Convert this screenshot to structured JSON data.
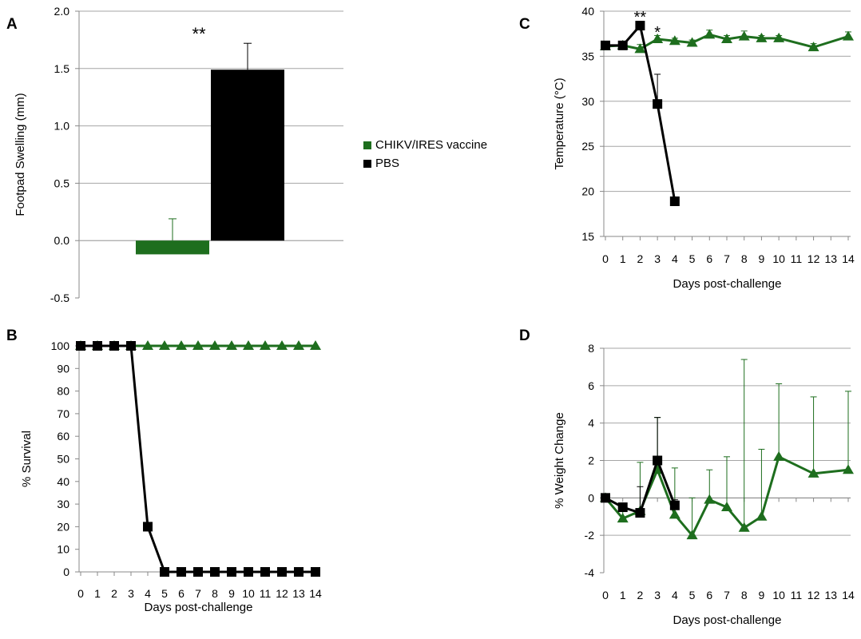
{
  "colors": {
    "vaccine": "#1e6e1e",
    "pbs": "#000000",
    "grid": "#a6a6a6"
  },
  "legend": [
    {
      "label": "CHIKV/IRES vaccine",
      "color": "#1e6e1e"
    },
    {
      "label": "PBS",
      "color": "#000000"
    }
  ],
  "chart_data": [
    {
      "panel": "A",
      "type": "bar",
      "ylabel": "Footpad Swelling (mm)",
      "ylim": [
        -0.5,
        2.0
      ],
      "yticks": [
        "-0.5",
        "0.0",
        "0.5",
        "1.0",
        "1.5",
        "2.0"
      ],
      "grid": true,
      "series": [
        {
          "name": "CHIKV/IRES vaccine",
          "value": -0.12,
          "error": 0.19
        },
        {
          "name": "PBS",
          "value": 1.49,
          "error": 0.23
        }
      ],
      "annotations": [
        "**"
      ]
    },
    {
      "panel": "B",
      "type": "line",
      "xlabel": "Days post-challenge",
      "ylabel": "% Survival",
      "ylim": [
        0,
        100
      ],
      "yticks": [
        "0",
        "10",
        "20",
        "30",
        "40",
        "50",
        "60",
        "70",
        "80",
        "90",
        "100"
      ],
      "x": [
        0,
        1,
        2,
        3,
        4,
        5,
        6,
        7,
        8,
        9,
        10,
        11,
        12,
        13,
        14
      ],
      "grid": false,
      "series": [
        {
          "name": "CHIKV/IRES vaccine",
          "marker": "triangle",
          "values": [
            100,
            100,
            100,
            100,
            100,
            100,
            100,
            100,
            100,
            100,
            100,
            100,
            100,
            100,
            100
          ]
        },
        {
          "name": "PBS",
          "marker": "square",
          "values": [
            100,
            100,
            100,
            100,
            20,
            0,
            0,
            0,
            0,
            0,
            0,
            0,
            0,
            0,
            0
          ]
        }
      ]
    },
    {
      "panel": "C",
      "type": "line",
      "xlabel": "Days post-challenge",
      "ylabel": "Temperature (°C)",
      "ylim": [
        15,
        40
      ],
      "yticks": [
        "15",
        "20",
        "25",
        "30",
        "35",
        "40"
      ],
      "grid": true,
      "series": [
        {
          "name": "CHIKV/IRES vaccine",
          "marker": "triangle",
          "x": [
            0,
            1,
            2,
            3,
            4,
            5,
            6,
            7,
            8,
            9,
            10,
            12,
            14
          ],
          "values": [
            36.1,
            36.2,
            35.8,
            36.9,
            36.7,
            36.5,
            37.4,
            36.9,
            37.2,
            37.0,
            37.0,
            36.0,
            37.2
          ],
          "error": [
            0.3,
            0.3,
            0.5,
            0.4,
            0.3,
            0.3,
            0.5,
            0.4,
            0.6,
            0.3,
            0.3,
            0.4,
            0.5
          ]
        },
        {
          "name": "PBS",
          "marker": "square",
          "x": [
            0,
            1,
            2,
            3,
            4
          ],
          "values": [
            36.2,
            36.2,
            38.4,
            29.7,
            18.9
          ],
          "error": [
            0.0,
            0.0,
            0.0,
            3.3,
            0.0
          ]
        }
      ],
      "annotations": [
        {
          "text": "**",
          "x": 2
        },
        {
          "text": "*",
          "x": 3
        }
      ]
    },
    {
      "panel": "D",
      "type": "line",
      "xlabel": "Days post-challenge",
      "ylabel": "% Weight Change",
      "ylim": [
        -4,
        8
      ],
      "yticks": [
        "-4",
        "-2",
        "0",
        "2",
        "4",
        "6",
        "8"
      ],
      "grid": true,
      "series": [
        {
          "name": "CHIKV/IRES vaccine",
          "marker": "triangle",
          "x": [
            0,
            1,
            2,
            3,
            4,
            5,
            6,
            7,
            8,
            9,
            10,
            12,
            14
          ],
          "values": [
            0.0,
            -1.1,
            -0.7,
            1.5,
            -0.9,
            -2.0,
            -0.1,
            -0.5,
            -1.6,
            -1.0,
            2.2,
            1.3,
            1.5
          ],
          "error": [
            0.0,
            0.4,
            2.6,
            2.8,
            2.5,
            2.0,
            1.6,
            2.7,
            9.0,
            3.6,
            3.9,
            4.1,
            4.2
          ]
        },
        {
          "name": "PBS",
          "marker": "square",
          "x": [
            0,
            1,
            2,
            3,
            4
          ],
          "values": [
            0.0,
            -0.5,
            -0.8,
            2.0,
            -0.4
          ],
          "error": [
            0.0,
            0.2,
            1.4,
            2.3,
            0.3
          ]
        }
      ]
    }
  ],
  "panel_labels": [
    "A",
    "B",
    "C",
    "D"
  ],
  "x_tick_labels": [
    "0",
    "1",
    "2",
    "3",
    "4",
    "5",
    "6",
    "7",
    "8",
    "9",
    "10",
    "11",
    "12",
    "13",
    "14"
  ]
}
